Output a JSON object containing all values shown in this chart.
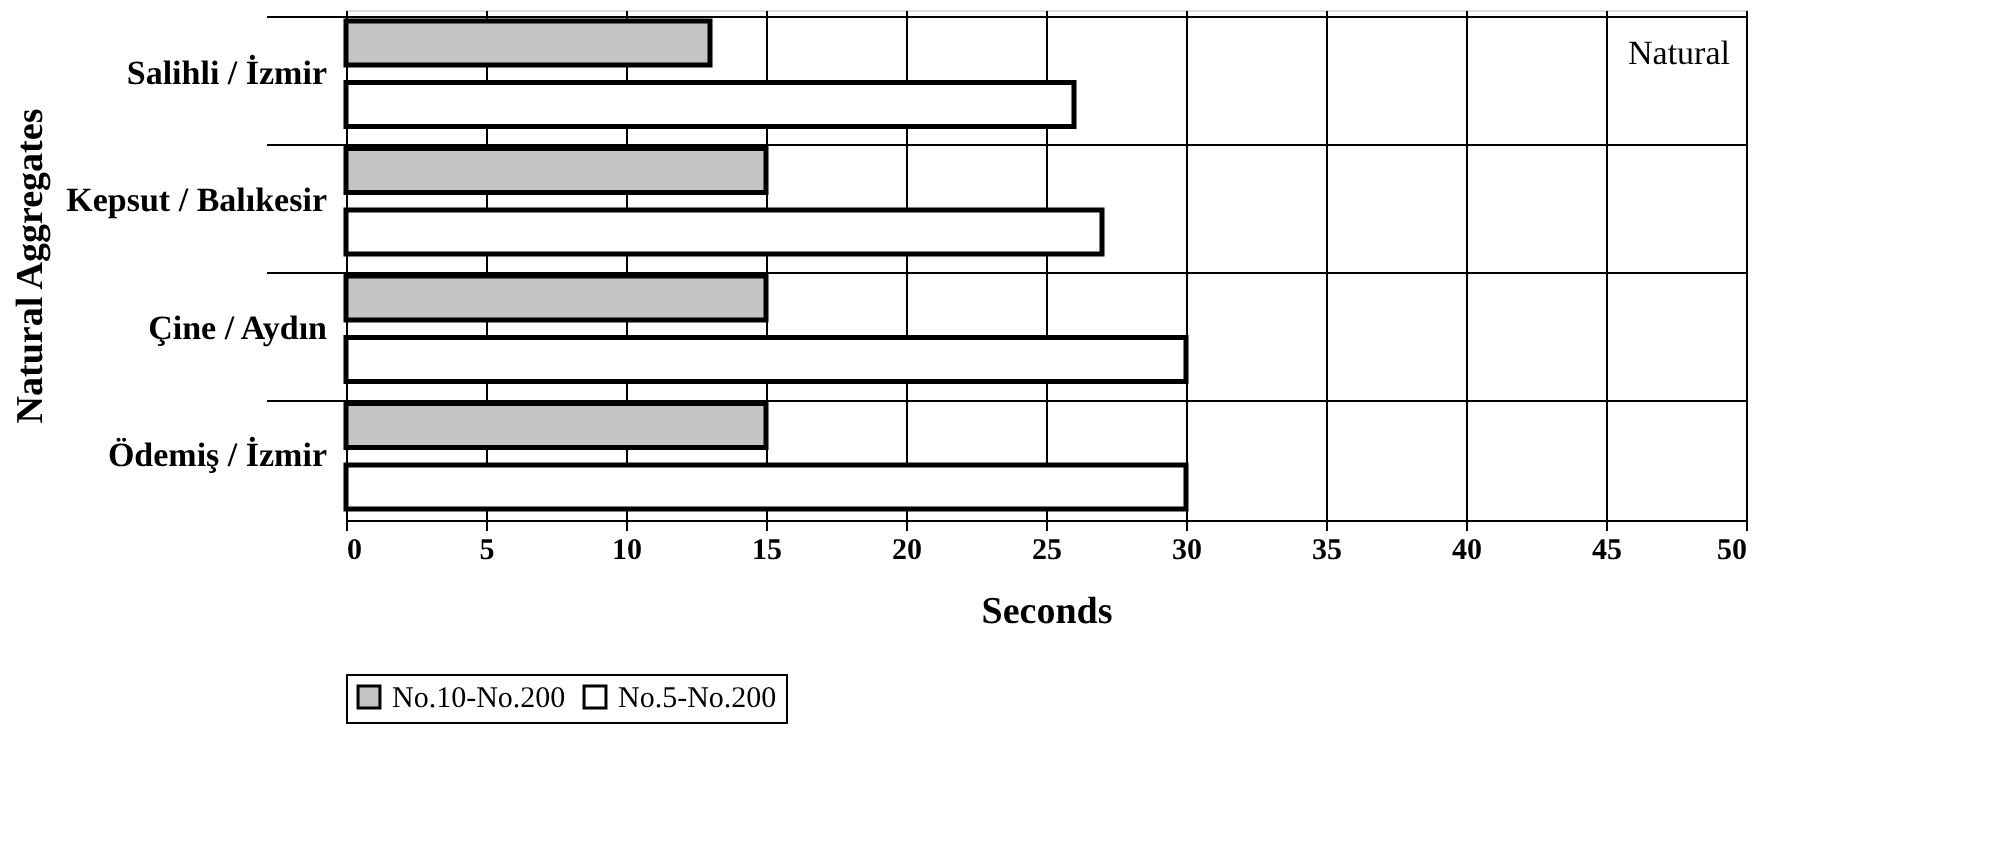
{
  "chart_data": {
    "type": "bar",
    "orientation": "horizontal",
    "xlabel": "Seconds",
    "ylabel": "Natural Aggregates",
    "categories": [
      "Salihli / İzmir",
      "Kepsut / Balıkesir",
      "Çine / Aydın",
      "Ödemiş / İzmir"
    ],
    "series": [
      {
        "name": "No.10-No.200",
        "color": "#c4c4c4",
        "values": [
          13,
          15,
          15,
          15
        ]
      },
      {
        "name": "No.5-No.200",
        "color": "#ffffff",
        "values": [
          26,
          27,
          30,
          30
        ]
      }
    ],
    "xlim": [
      0,
      50
    ],
    "xticks": [
      0,
      5,
      10,
      15,
      20,
      25,
      30,
      35,
      40,
      45,
      50
    ],
    "grid": "x",
    "legend": "bottom",
    "annotations": [
      "Natural"
    ]
  }
}
